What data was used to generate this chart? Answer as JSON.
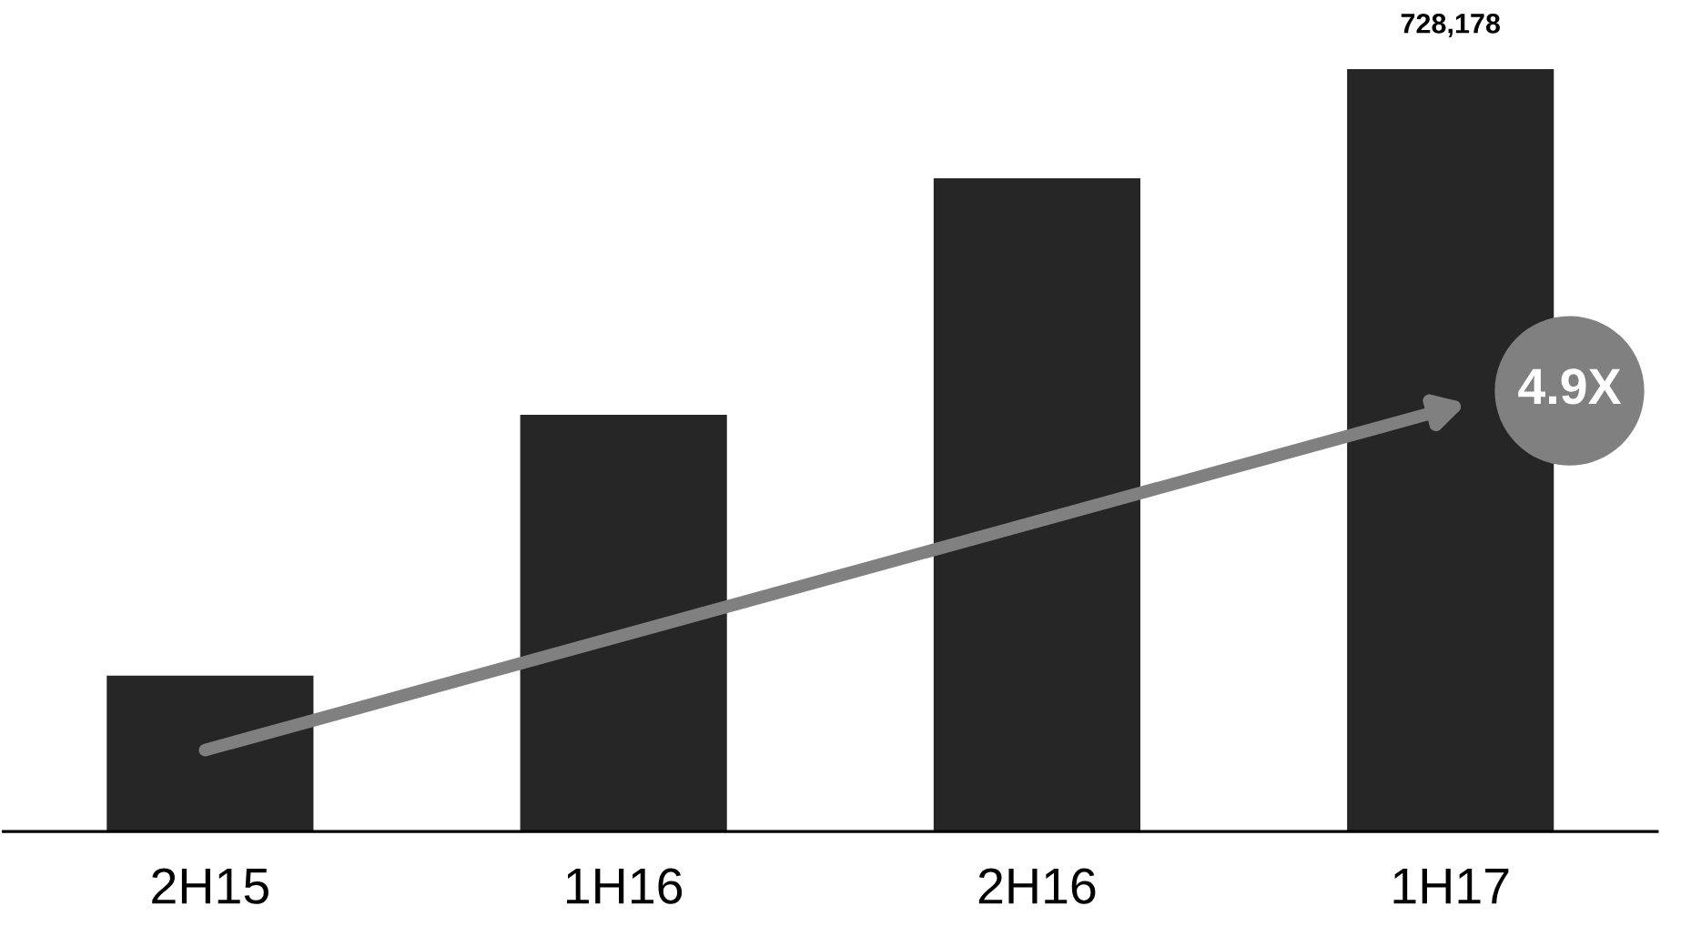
{
  "chart_data": {
    "type": "bar",
    "categories": [
      "2H15",
      "1H16",
      "2H16",
      "1H17"
    ],
    "values": [
      149000,
      398000,
      624000,
      728178
    ],
    "value_labels": [
      null,
      null,
      null,
      "728,178"
    ],
    "color": "#262626",
    "annotations": [
      "4.9X"
    ],
    "tick_labels": "x",
    "grid": false,
    "legend": false
  }
}
